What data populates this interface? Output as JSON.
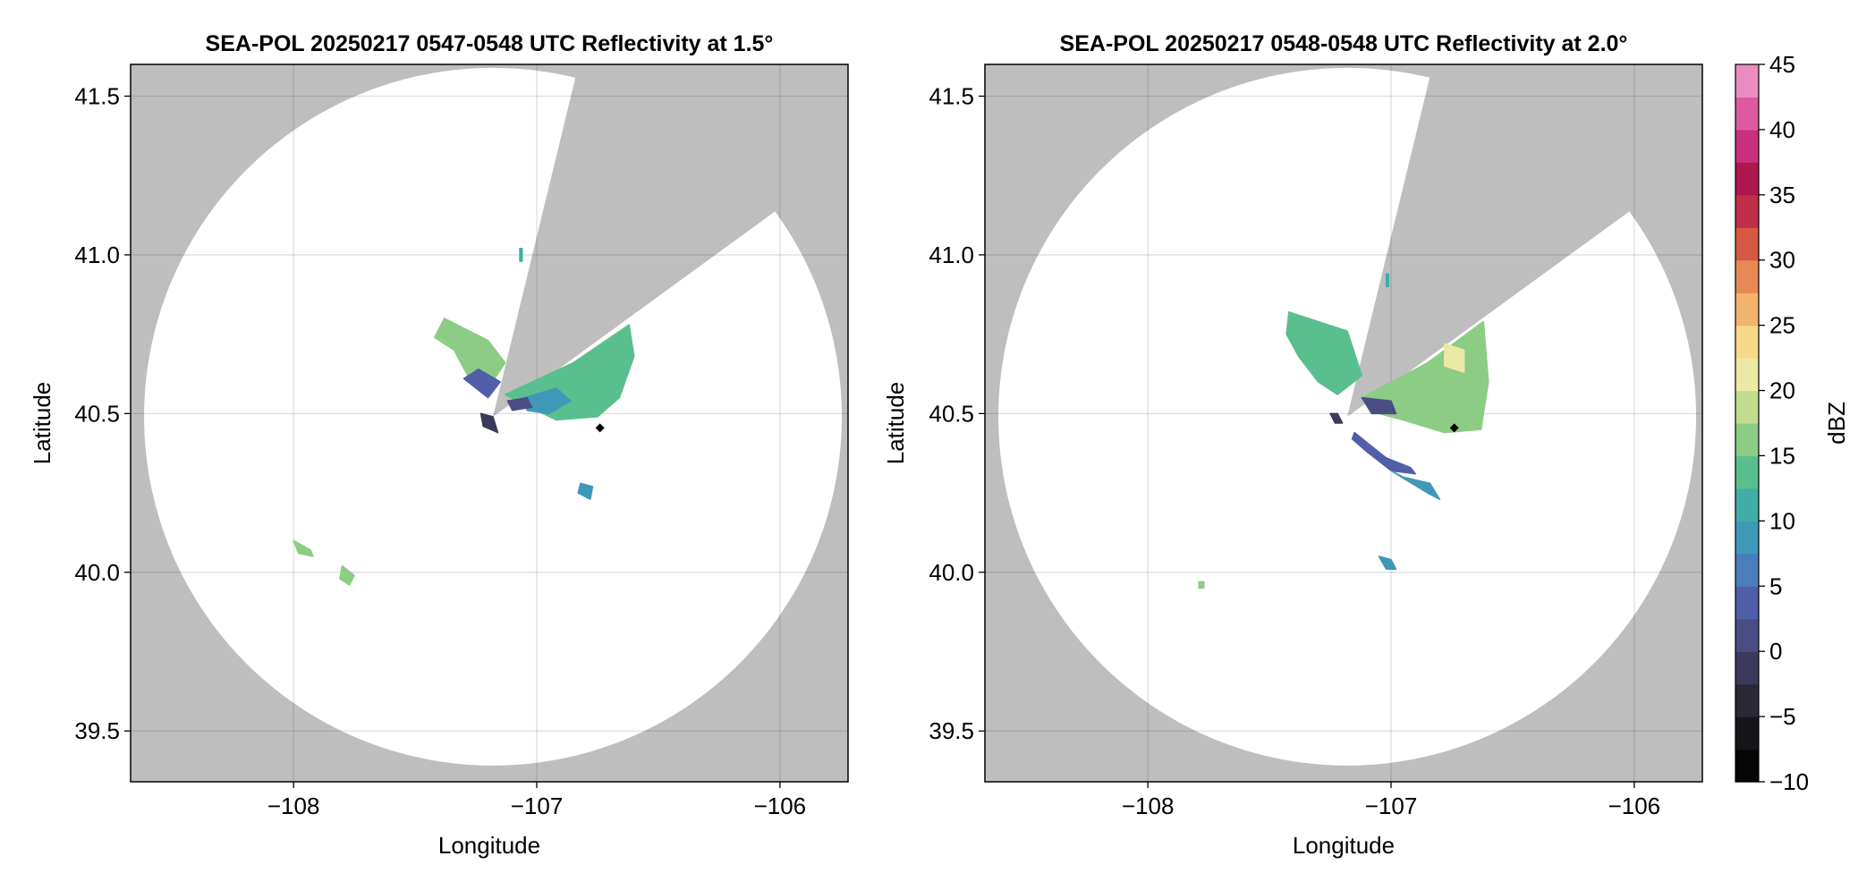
{
  "chart_data": [
    {
      "type": "heatmap",
      "title": "SEA-POL 20250217 0547-0548 UTC Reflectivity at 1.5°",
      "xlabel": "Longitude",
      "ylabel": "Latitude",
      "xlim": [
        -108.67,
        -105.72
      ],
      "ylim": [
        39.34,
        41.6
      ],
      "xticks": [
        -108,
        -107,
        -106
      ],
      "xtick_labels": [
        "−108",
        "−107",
        "−106"
      ],
      "yticks": [
        39.5,
        40.0,
        40.5,
        41.0,
        41.5
      ],
      "ytick_labels": [
        "39.5",
        "40.0",
        "40.5",
        "41.0",
        "41.5"
      ],
      "grid": true,
      "background_color": "#bebebe",
      "scan_center": [
        -107.18,
        40.49
      ],
      "blocked_sector": [
        [
          -106.85,
          41.53
        ],
        [
          -106.05,
          41.12
        ]
      ],
      "marker": [
        -106.74,
        40.455
      ],
      "echoes": [
        {
          "poly": [
            [
              -107.38,
              40.8
            ],
            [
              -107.2,
              40.73
            ],
            [
              -107.13,
              40.66
            ],
            [
              -107.2,
              40.58
            ],
            [
              -107.27,
              40.6
            ],
            [
              -107.34,
              40.7
            ],
            [
              -107.42,
              40.74
            ]
          ],
          "dbz": 15
        },
        {
          "poly": [
            [
              -107.3,
              40.61
            ],
            [
              -107.2,
              40.55
            ],
            [
              -107.15,
              40.6
            ],
            [
              -107.24,
              40.64
            ]
          ],
          "dbz": 3
        },
        {
          "poly": [
            [
              -107.13,
              40.56
            ],
            [
              -106.85,
              40.66
            ],
            [
              -106.62,
              40.78
            ],
            [
              -106.6,
              40.68
            ],
            [
              -106.66,
              40.55
            ],
            [
              -106.75,
              40.49
            ],
            [
              -106.92,
              40.48
            ],
            [
              -107.03,
              40.52
            ]
          ],
          "dbz": 14
        },
        {
          "poly": [
            [
              -107.05,
              40.55
            ],
            [
              -106.92,
              40.58
            ],
            [
              -106.86,
              40.54
            ],
            [
              -106.95,
              40.5
            ],
            [
              -107.04,
              40.51
            ]
          ],
          "dbz": 8
        },
        {
          "poly": [
            [
              -107.12,
              40.54
            ],
            [
              -107.04,
              40.55
            ],
            [
              -107.02,
              40.52
            ],
            [
              -107.1,
              40.51
            ]
          ],
          "dbz": 0
        },
        {
          "poly": [
            [
              -107.23,
              40.5
            ],
            [
              -107.18,
              40.49
            ],
            [
              -107.16,
              40.44
            ],
            [
              -107.22,
              40.46
            ]
          ],
          "dbz": -2
        },
        {
          "poly": [
            [
              -106.82,
              40.28
            ],
            [
              -106.77,
              40.27
            ],
            [
              -106.78,
              40.23
            ],
            [
              -106.83,
              40.25
            ]
          ],
          "dbz": 8
        },
        {
          "poly": [
            [
              -108.0,
              40.1
            ],
            [
              -107.93,
              40.07
            ],
            [
              -107.92,
              40.05
            ],
            [
              -107.98,
              40.06
            ]
          ],
          "dbz": 15
        },
        {
          "poly": [
            [
              -107.8,
              40.02
            ],
            [
              -107.75,
              39.99
            ],
            [
              -107.77,
              39.96
            ],
            [
              -107.81,
              39.98
            ]
          ],
          "dbz": 15
        },
        {
          "poly": [
            [
              -107.07,
              41.02
            ],
            [
              -107.06,
              41.02
            ],
            [
              -107.06,
              40.98
            ],
            [
              -107.07,
              40.98
            ]
          ],
          "dbz": 10
        }
      ]
    },
    {
      "type": "heatmap",
      "title": "SEA-POL 20250217 0548-0548 UTC Reflectivity at 2.0°",
      "xlabel": "Longitude",
      "ylabel": "Latitude",
      "xlim": [
        -108.67,
        -105.72
      ],
      "ylim": [
        39.34,
        41.6
      ],
      "xticks": [
        -108,
        -107,
        -106
      ],
      "xtick_labels": [
        "−108",
        "−107",
        "−106"
      ],
      "yticks": [
        39.5,
        40.0,
        40.5,
        41.0,
        41.5
      ],
      "ytick_labels": [
        "39.5",
        "40.0",
        "40.5",
        "41.0",
        "41.5"
      ],
      "grid": true,
      "background_color": "#bebebe",
      "scan_center": [
        -107.18,
        40.49
      ],
      "blocked_sector": [
        [
          -106.85,
          41.53
        ],
        [
          -106.05,
          41.12
        ]
      ],
      "marker": [
        -106.74,
        40.455
      ],
      "echoes": [
        {
          "poly": [
            [
              -107.42,
              40.82
            ],
            [
              -107.18,
              40.76
            ],
            [
              -107.12,
              40.62
            ],
            [
              -107.22,
              40.56
            ],
            [
              -107.3,
              40.6
            ],
            [
              -107.38,
              40.68
            ],
            [
              -107.43,
              40.75
            ]
          ],
          "dbz": 14
        },
        {
          "poly": [
            [
              -107.12,
              40.55
            ],
            [
              -106.85,
              40.66
            ],
            [
              -106.62,
              40.79
            ],
            [
              -106.6,
              40.6
            ],
            [
              -106.63,
              40.45
            ],
            [
              -106.78,
              40.44
            ],
            [
              -106.95,
              40.48
            ],
            [
              -107.05,
              40.5
            ]
          ],
          "dbz": 15
        },
        {
          "poly": [
            [
              -106.78,
              40.72
            ],
            [
              -106.7,
              40.7
            ],
            [
              -106.7,
              40.63
            ],
            [
              -106.78,
              40.65
            ]
          ],
          "dbz": 20
        },
        {
          "poly": [
            [
              -107.12,
              40.55
            ],
            [
              -107.0,
              40.54
            ],
            [
              -106.98,
              40.5
            ],
            [
              -107.08,
              40.5
            ]
          ],
          "dbz": 2
        },
        {
          "poly": [
            [
              -107.15,
              40.44
            ],
            [
              -107.02,
              40.36
            ],
            [
              -106.92,
              40.33
            ],
            [
              -106.9,
              40.31
            ],
            [
              -107.0,
              40.32
            ],
            [
              -107.1,
              40.38
            ],
            [
              -107.16,
              40.42
            ]
          ],
          "dbz": 3
        },
        {
          "poly": [
            [
              -107.0,
              40.32
            ],
            [
              -106.85,
              40.25
            ],
            [
              -106.8,
              40.23
            ],
            [
              -106.84,
              40.28
            ],
            [
              -106.95,
              40.3
            ]
          ],
          "dbz": 8
        },
        {
          "poly": [
            [
              -107.25,
              40.5
            ],
            [
              -107.23,
              40.47
            ],
            [
              -107.2,
              40.47
            ],
            [
              -107.22,
              40.5
            ]
          ],
          "dbz": -1
        },
        {
          "poly": [
            [
              -107.05,
              40.05
            ],
            [
              -107.02,
              40.01
            ],
            [
              -106.98,
              40.01
            ],
            [
              -107.0,
              40.04
            ]
          ],
          "dbz": 8
        },
        {
          "poly": [
            [
              -107.79,
              39.97
            ],
            [
              -107.77,
              39.97
            ],
            [
              -107.77,
              39.95
            ],
            [
              -107.79,
              39.95
            ]
          ],
          "dbz": 15
        },
        {
          "poly": [
            [
              -107.02,
              40.94
            ],
            [
              -107.01,
              40.94
            ],
            [
              -107.01,
              40.9
            ],
            [
              -107.02,
              40.9
            ]
          ],
          "dbz": 10
        }
      ]
    }
  ],
  "colorbar": {
    "label": "dBZ",
    "min": -10,
    "max": 45,
    "ticks": [
      -10,
      -5,
      0,
      5,
      10,
      15,
      20,
      25,
      30,
      35,
      40,
      45
    ],
    "tick_labels": [
      "−10",
      "−5",
      "0",
      "5",
      "10",
      "15",
      "20",
      "25",
      "30",
      "35",
      "40",
      "45"
    ],
    "step": 2.5,
    "colors": [
      "#050505",
      "#16161a",
      "#2a2a36",
      "#3b3a5a",
      "#4a4d84",
      "#505fa8",
      "#4a7dbb",
      "#3f98b8",
      "#40ada6",
      "#5abf8e",
      "#8ccc84",
      "#c2dd8f",
      "#ece9a6",
      "#f6d889",
      "#f2b36c",
      "#e88955",
      "#d65943",
      "#bf2f4a",
      "#ad1750",
      "#c9307b",
      "#de5a9e",
      "#eb8cc1",
      "#e6b3d8",
      "#c79ed5",
      "#9b73b7",
      "#6e4696",
      "#3f1a55"
    ]
  }
}
